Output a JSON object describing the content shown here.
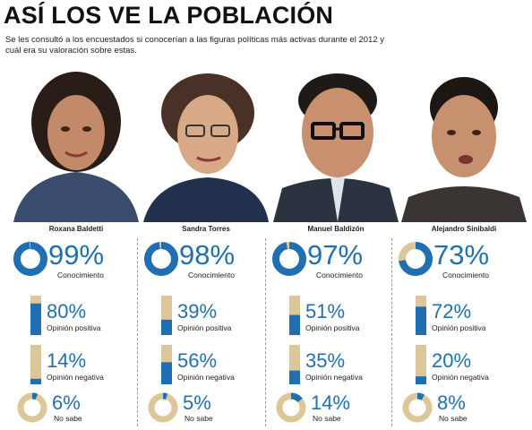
{
  "title": "ASÍ LOS VE LA POBLACIÓN",
  "subtitle": "Se les consultó a los encuestados si conocerían a las figuras políticas más activas durante el 2012 y cuál era su valoración sobre estas.",
  "colors": {
    "accent": "#1f6fb2",
    "bar_bg": "#dcc79a",
    "ring_bg": "#dcc79a",
    "ink": "#222222"
  },
  "chart_data": {
    "type": "table",
    "metrics": [
      "Conocimiento",
      "Opinión positiva",
      "Opinión negativa",
      "No sabe"
    ],
    "series": [
      {
        "name": "Roxana Baldetti",
        "values": [
          99,
          80,
          14,
          6
        ],
        "labels": [
          "99%",
          "80%",
          "14%",
          "6%"
        ]
      },
      {
        "name": "Sandra Torres",
        "values": [
          98,
          39,
          56,
          5
        ],
        "labels": [
          "98%",
          "39%",
          "56%",
          "5%"
        ]
      },
      {
        "name": "Manuel Baldizón",
        "values": [
          97,
          51,
          35,
          14
        ],
        "labels": [
          "97%",
          "51%",
          "35%",
          "14%"
        ]
      },
      {
        "name": "Alejandro Sinibaldi",
        "values": [
          73,
          72,
          20,
          8
        ],
        "labels": [
          "73%",
          "72%",
          "20%",
          "8%"
        ]
      }
    ]
  }
}
